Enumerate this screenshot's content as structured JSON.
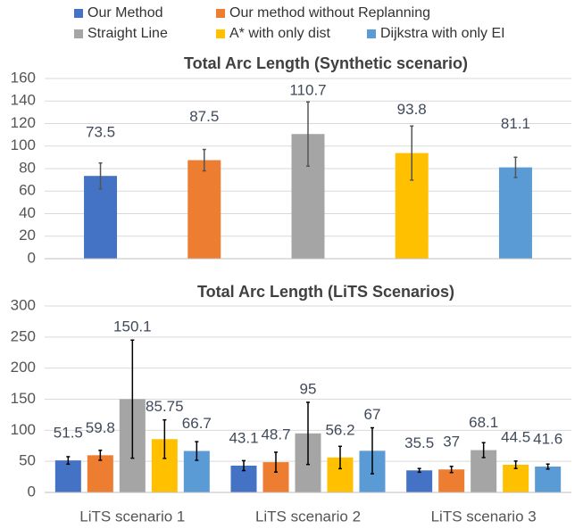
{
  "chart_data": [
    {
      "type": "bar",
      "title": "Total Arc Length (Synthetic scenario)",
      "categories": [
        null
      ],
      "series": [
        {
          "name": "Our Method",
          "color": "#4472c4",
          "values": [
            73.5
          ],
          "errors": [
            11.5
          ]
        },
        {
          "name": "Our method without Replanning",
          "color": "#ed7d31",
          "values": [
            87.5
          ],
          "errors": [
            9.5
          ]
        },
        {
          "name": "Straight Line",
          "color": "#a5a5a5",
          "values": [
            110.7
          ],
          "errors": [
            28.5
          ]
        },
        {
          "name": "A* with only dist",
          "color": "#ffc000",
          "values": [
            93.8
          ],
          "errors": [
            24
          ]
        },
        {
          "name": "Dijkstra with only EI",
          "color": "#5b9bd5",
          "values": [
            81.1
          ],
          "errors": [
            9
          ]
        }
      ],
      "ylim": [
        0,
        160
      ],
      "yticks": [
        0,
        20,
        40,
        60,
        80,
        100,
        120,
        140,
        160
      ],
      "grid": true
    },
    {
      "type": "bar",
      "title": "Total Arc Length (LiTS Scenarios)",
      "categories": [
        "LiTS scenario 1",
        "LiTS scenario 2",
        "LiTS scenario 3"
      ],
      "series": [
        {
          "color": "#4472c4",
          "values": [
            51.5,
            43.1,
            35.5
          ],
          "errors": [
            6,
            8,
            3
          ]
        },
        {
          "color": "#ed7d31",
          "values": [
            59.8,
            48.7,
            37
          ],
          "errors": [
            8,
            16,
            5
          ]
        },
        {
          "color": "#a5a5a5",
          "values": [
            150.1,
            95,
            68.1
          ],
          "errors": [
            95,
            50,
            12
          ]
        },
        {
          "color": "#ffc000",
          "values": [
            85.75,
            56.2,
            44.5
          ],
          "errors": [
            31,
            18,
            6
          ]
        },
        {
          "color": "#5b9bd5",
          "values": [
            66.7,
            67,
            41.6
          ],
          "errors": [
            15,
            37,
            4
          ]
        }
      ],
      "ylim": [
        0,
        300
      ],
      "yticks": [
        0,
        50,
        100,
        150,
        200,
        250,
        300
      ],
      "grid": true
    }
  ]
}
